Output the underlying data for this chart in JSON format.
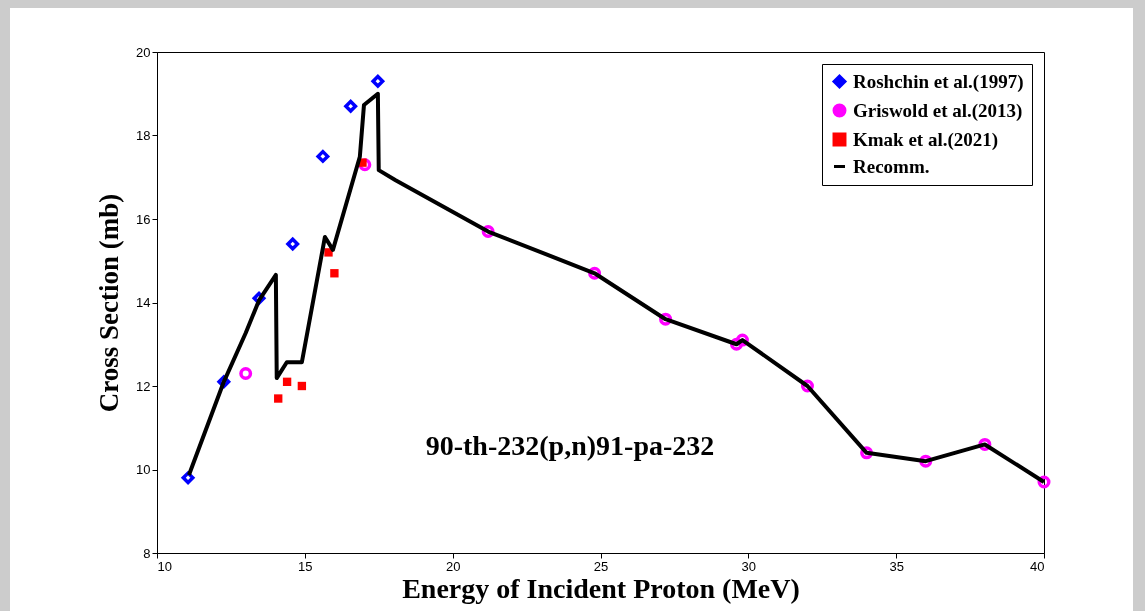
{
  "chart_data": {
    "type": "scatter",
    "xlabel": "Energy of Incident Proton (MeV)",
    "ylabel": "Cross Section (mb)",
    "annotations": [
      "90-th-232(p,n)91-pa-232"
    ],
    "xlim": [
      10,
      40
    ],
    "ylim": [
      8,
      20
    ],
    "xticks": [
      10,
      15,
      20,
      25,
      30,
      35,
      40
    ],
    "yticks": [
      8,
      10,
      12,
      14,
      16,
      18,
      20
    ],
    "grid": false,
    "legend": "top right",
    "series": [
      {
        "name": "Roshchin et al.(1997)",
        "marker": "diamond",
        "color": "#0000ff",
        "x": [
          11.05,
          12.26,
          13.45,
          14.59,
          15.61,
          16.55,
          17.47
        ],
        "values": [
          9.8,
          12.1,
          14.1,
          15.4,
          17.5,
          18.7,
          19.3
        ]
      },
      {
        "name": "Griswold et al.(2013)",
        "marker": "circle",
        "color": "#ff00ff",
        "x": [
          13,
          17.03,
          21.2,
          24.8,
          27.2,
          29.6,
          29.8,
          32,
          34,
          36,
          38,
          40
        ],
        "values": [
          12.3,
          17.3,
          15.7,
          14.7,
          13.6,
          13.0,
          13.1,
          12.0,
          10.4,
          10.2,
          10.6,
          9.7
        ]
      },
      {
        "name": "Kmak et al.(2021)",
        "marker": "square",
        "color": "#ff0000",
        "x": [
          14.1,
          14.4,
          14.9,
          15.8,
          16.0,
          16.95
        ],
        "values": [
          11.7,
          12.1,
          12.0,
          15.2,
          14.7,
          17.35
        ]
      },
      {
        "name": "Recomm.",
        "type": "line",
        "marker": "none",
        "line_style": "solid",
        "color": "#000000",
        "x": [
          11.08,
          12.26,
          13.0,
          13.45,
          14.02,
          14.05,
          14.39,
          14.9,
          15.68,
          15.95,
          16.86,
          17.0,
          17.47,
          17.5,
          18.07,
          21.2,
          24.8,
          27.2,
          29.6,
          29.8,
          32,
          34,
          36,
          38,
          40
        ],
        "values": [
          9.87,
          12.1,
          13.27,
          14.05,
          14.66,
          12.19,
          12.57,
          12.57,
          15.57,
          15.26,
          17.49,
          18.73,
          19.0,
          17.17,
          16.93,
          15.7,
          14.7,
          13.6,
          13.0,
          13.1,
          12.0,
          10.4,
          10.2,
          10.6,
          9.7
        ]
      }
    ]
  }
}
